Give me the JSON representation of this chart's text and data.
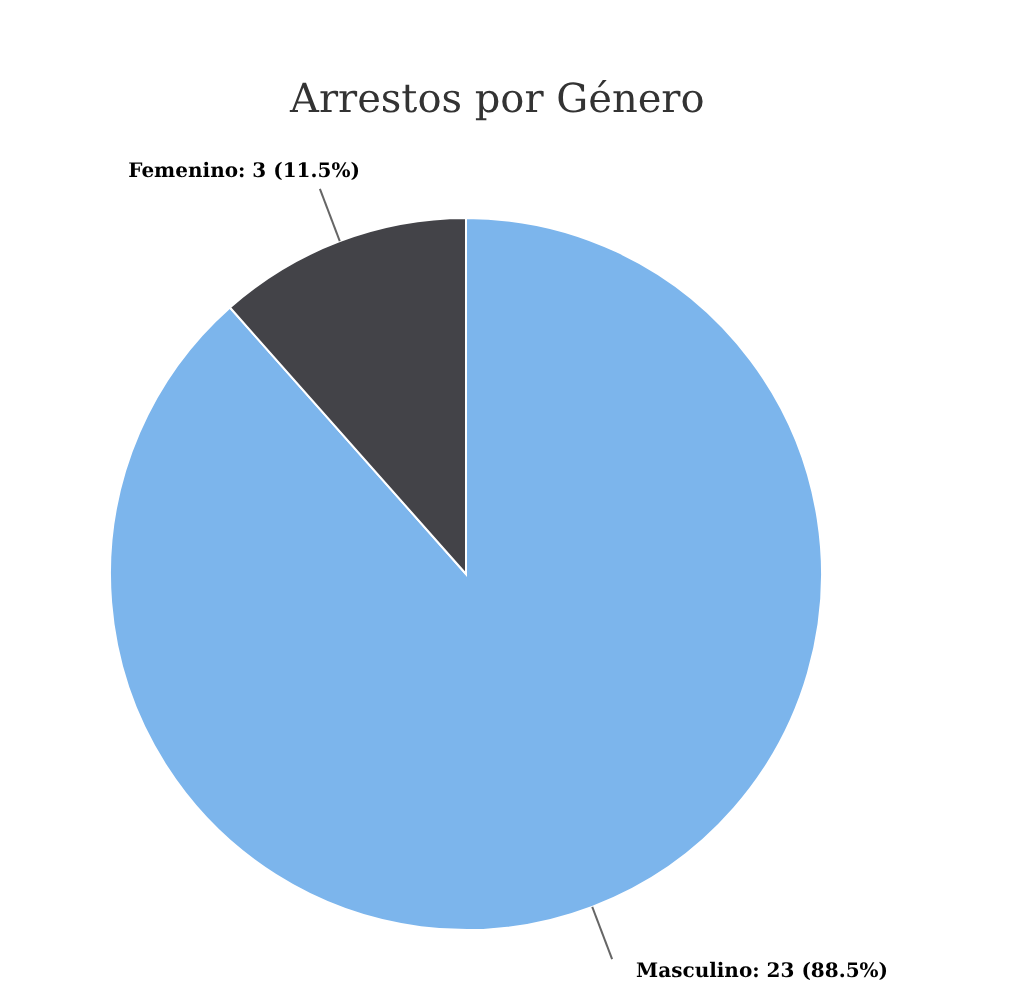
{
  "chart_data": {
    "type": "pie",
    "title": "Arrestos por Género",
    "categories": [
      "Masculino",
      "Femenino"
    ],
    "values": [
      23,
      3
    ],
    "value_labels": [
      "23 (88.5%)",
      "3 (11.5%)"
    ],
    "colors": [
      "#7cb5ec",
      "#434348"
    ]
  }
}
